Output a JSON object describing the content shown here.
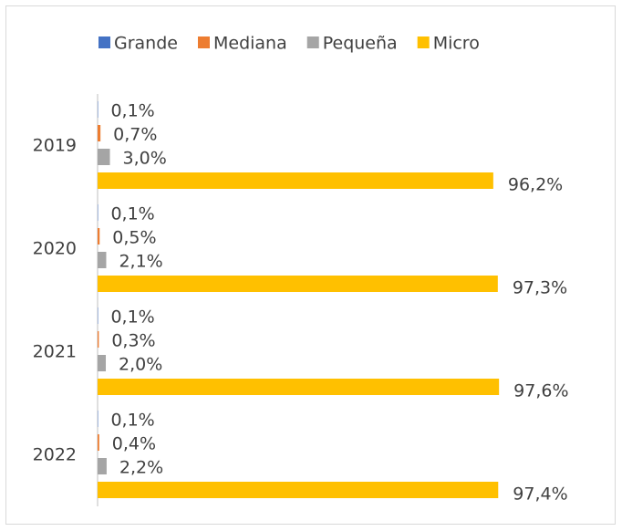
{
  "chart_data": {
    "type": "bar",
    "orientation": "horizontal",
    "categories": [
      "2019",
      "2020",
      "2021",
      "2022"
    ],
    "series": [
      {
        "name": "Grande",
        "color": "#4472c4",
        "values": [
          0.1,
          0.1,
          0.1,
          0.1
        ],
        "value_labels": [
          "0,1%",
          "0,1%",
          "0,1%",
          "0,1%"
        ]
      },
      {
        "name": "Mediana",
        "color": "#ed7d31",
        "values": [
          0.7,
          0.5,
          0.3,
          0.4
        ],
        "value_labels": [
          "0,7%",
          "0,5%",
          "0,3%",
          "0,4%"
        ]
      },
      {
        "name": "Pequeña",
        "color": "#a5a5a5",
        "values": [
          3.0,
          2.1,
          2.0,
          2.2
        ],
        "value_labels": [
          "3,0%",
          "2,1%",
          "2,0%",
          "2,2%"
        ]
      },
      {
        "name": "Micro",
        "color": "#ffc000",
        "values": [
          96.2,
          97.3,
          97.6,
          97.4
        ],
        "value_labels": [
          "96,2%",
          "97,3%",
          "97,6%",
          "97,4%"
        ]
      }
    ],
    "legend": "top"
  }
}
